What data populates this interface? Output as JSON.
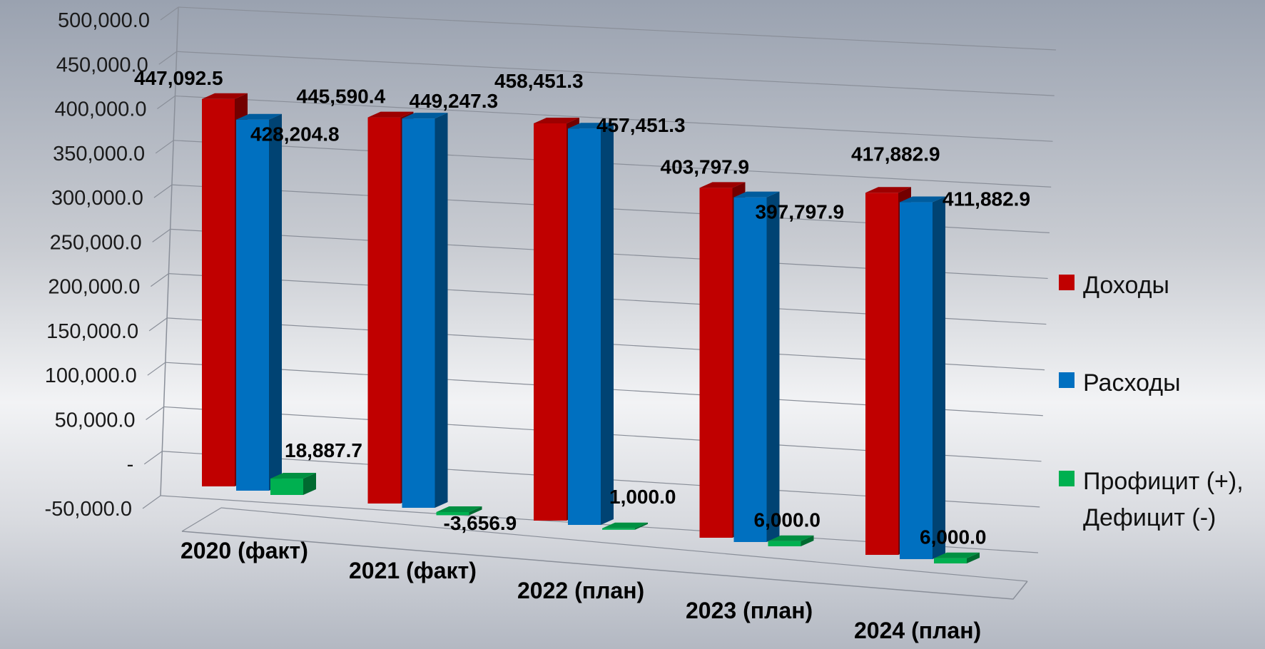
{
  "chart_data": {
    "type": "bar",
    "title": "",
    "xlabel": "",
    "ylabel": "",
    "ylim": [
      -50000,
      500000
    ],
    "ytick_step": 50000,
    "y_tick_labels": [
      "-50,000.0",
      "-",
      "50,000.0",
      "100,000.0",
      "150,000.0",
      "200,000.0",
      "250,000.0",
      "300,000.0",
      "350,000.0",
      "400,000.0",
      "450,000.0",
      "500,000.0"
    ],
    "categories": [
      "2020 (факт)",
      "2021 (факт)",
      "2022 (план)",
      "2023 (план)",
      "2024 (план)"
    ],
    "grid": true,
    "legend_position": "right",
    "series": [
      {
        "name": "Доходы",
        "color": "#c00000",
        "values": [
          447092.5,
          445590.4,
          458451.3,
          403797.9,
          417882.9
        ],
        "labels": [
          "447,092.5",
          "445,590.4",
          "458,451.3",
          "403,797.9",
          "417,882.9"
        ]
      },
      {
        "name": "Расходы",
        "color": "#0070c0",
        "values": [
          428204.8,
          449247.3,
          457451.3,
          397797.9,
          411882.9
        ],
        "labels": [
          "428,204.8",
          "449,247.3",
          "457,451.3",
          "397,797.9",
          "411,882.9"
        ]
      },
      {
        "name": "Профицит (+), Дефицит (-)",
        "color": "#00b050",
        "values": [
          18887.7,
          -3656.9,
          1000.0,
          6000.0,
          6000.0
        ],
        "labels": [
          "18,887.7",
          "-3,656.9",
          "1,000.0",
          "6,000.0",
          "6,000.0"
        ]
      }
    ]
  },
  "legend": {
    "items": [
      {
        "lines": [
          "Доходы"
        ],
        "color": "#c00000"
      },
      {
        "lines": [
          "Расходы"
        ],
        "color": "#0070c0"
      },
      {
        "lines": [
          "Профицит (+),",
          "Дефицит (-)"
        ],
        "color": "#00b050"
      }
    ]
  }
}
